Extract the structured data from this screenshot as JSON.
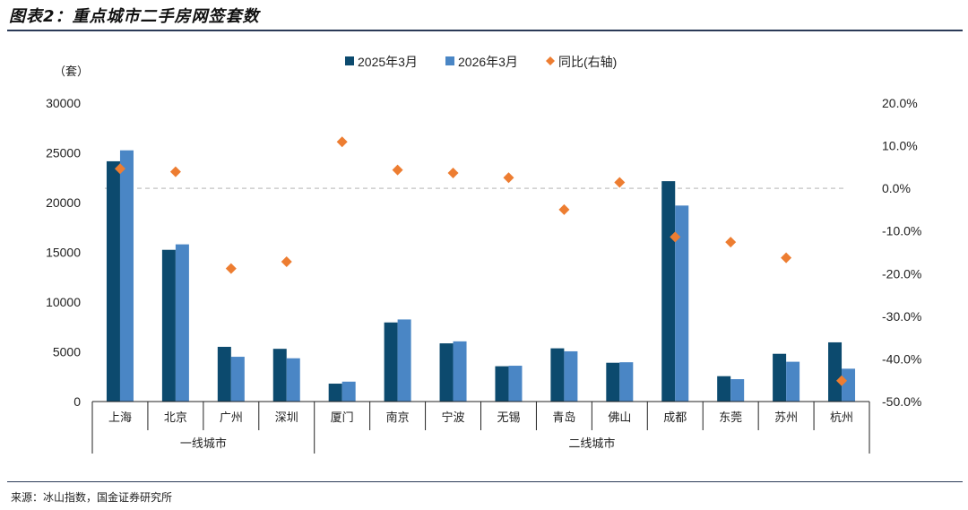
{
  "header": {
    "title": "图表2：重点城市二手房网签套数"
  },
  "footer": {
    "source": "来源：冰山指数，国金证券研究所"
  },
  "colors": {
    "series1": "#0c4a6e",
    "series2": "#4a86c5",
    "yoy": "#ed7d31",
    "axis": "#222222",
    "zero_line": "#cccccc"
  },
  "chart_data": {
    "type": "bar",
    "y_unit": "（套）",
    "categories": [
      "上海",
      "北京",
      "广州",
      "深圳",
      "厦门",
      "南京",
      "宁波",
      "无锡",
      "青岛",
      "佛山",
      "成都",
      "东莞",
      "苏州",
      "杭州"
    ],
    "groups": [
      {
        "label": "一线城市",
        "categories": [
          "上海",
          "北京",
          "广州",
          "深圳"
        ]
      },
      {
        "label": "二线城市",
        "categories": [
          "厦门",
          "南京",
          "宁波",
          "无锡",
          "青岛",
          "佛山",
          "成都",
          "东莞",
          "苏州",
          "杭州"
        ]
      }
    ],
    "series": [
      {
        "name": "2025年3月",
        "kind": "bar",
        "axis": "left",
        "values": [
          24150,
          15250,
          5500,
          5300,
          1800,
          7950,
          5850,
          3550,
          5350,
          3900,
          22150,
          2550,
          4800,
          5950
        ]
      },
      {
        "name": "2026年3月",
        "kind": "bar",
        "axis": "left",
        "values": [
          25250,
          15800,
          4500,
          4350,
          2000,
          8250,
          6050,
          3600,
          5050,
          3950,
          19700,
          2250,
          4000,
          3300
        ]
      },
      {
        "name": "同比(右轴)",
        "kind": "scatter",
        "axis": "right",
        "values": [
          4.6,
          3.9,
          -18.8,
          -17.2,
          10.9,
          4.3,
          3.6,
          2.5,
          -5.0,
          1.4,
          -11.4,
          -12.6,
          -16.3,
          -45.1
        ]
      }
    ],
    "y_left": {
      "min": 0,
      "max": 30000,
      "ticks": [
        "0",
        "5000",
        "10000",
        "15000",
        "20000",
        "25000",
        "30000"
      ]
    },
    "y_right": {
      "min": -50,
      "max": 20,
      "ticks": [
        "-50.0%",
        "-40.0%",
        "-30.0%",
        "-20.0%",
        "-10.0%",
        "0.0%",
        "10.0%",
        "20.0%"
      ]
    },
    "grid": false,
    "legend_position": "top-center"
  }
}
